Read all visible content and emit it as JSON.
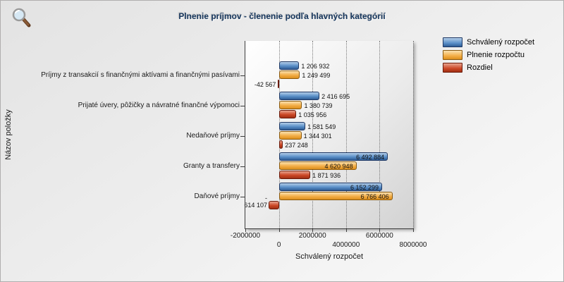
{
  "icons": {
    "toolbar_zoom": "magnifier-icon"
  },
  "chart_data": {
    "type": "bar",
    "orientation": "horizontal",
    "title": "Plnenie príjmov - členenie podľa hlavných kategórií",
    "xlabel": "Schválený rozpočet",
    "ylabel": "Názov položky",
    "xlim": [
      -2000000,
      8000000
    ],
    "xticks": [
      -2000000,
      0,
      2000000,
      4000000,
      6000000,
      8000000
    ],
    "xtick_labels": [
      "-2000000",
      "0",
      "2000000",
      "4000000",
      "6000000",
      "8000000"
    ],
    "grid": "vertical-dotted",
    "legend_position": "top-right",
    "categories": [
      "Príjmy z transakcií s finančnými aktívami a finančnými pasívami",
      "Prijaté úvery, pôžičky a návratné finančné výpomoci",
      "Nedaňové príjmy",
      "Granty a transfery",
      "Daňové príjmy"
    ],
    "series": [
      {
        "name": "Schválený rozpočet",
        "color": "#4f81bd",
        "border": "#1f3864",
        "gradient": [
          "#b3cde8",
          "#5a8fc8",
          "#2f5c94"
        ],
        "values": [
          1206932,
          2416695,
          1581549,
          6492884,
          6152299
        ],
        "labels": [
          "1 206 932",
          "2 416 695",
          "1 581 549",
          "6 492 884",
          "6 152 299"
        ]
      },
      {
        "name": "Plnenie rozpočtu",
        "color": "#f2a93d",
        "border": "#8a5a10",
        "gradient": [
          "#fbe2b0",
          "#f3ae47",
          "#dd8f1d"
        ],
        "values": [
          1249499,
          1380739,
          1344301,
          4620948,
          6766406
        ],
        "labels": [
          "1 249 499",
          "1 380 739",
          "1 344 301",
          "4 620 948",
          "6 766 406"
        ]
      },
      {
        "name": "Rozdiel",
        "color": "#c43c22",
        "border": "#6b1a0a",
        "gradient": [
          "#e8a38e",
          "#cc4726",
          "#a03015"
        ],
        "values": [
          -42567,
          1035956,
          237248,
          1871936,
          -614107
        ],
        "labels": [
          "-42 567",
          "1 035 956",
          "237 248",
          "1 871 936",
          "-\n614 107"
        ]
      }
    ]
  }
}
